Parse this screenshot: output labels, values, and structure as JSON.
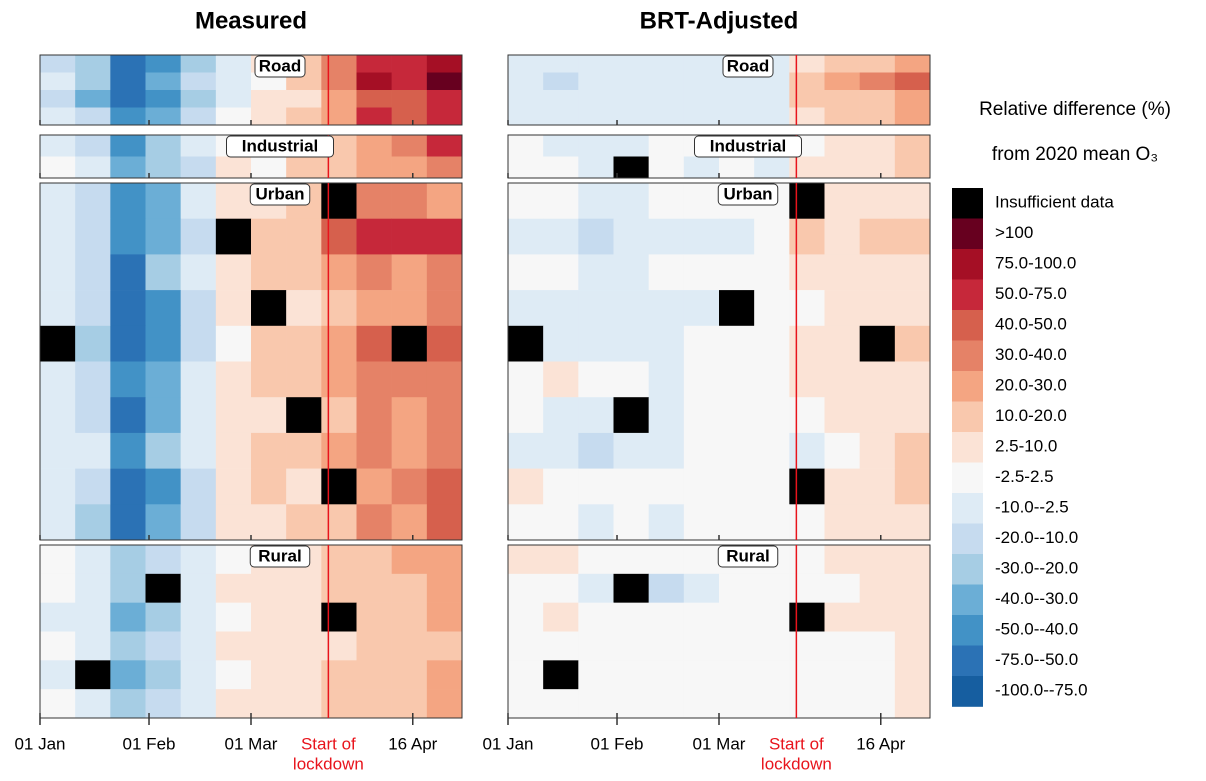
{
  "chart_data": [
    {
      "type": "heatmap",
      "title": "Measured",
      "bins": [
        0,
        10,
        20,
        30,
        40,
        50,
        60,
        70,
        80,
        90,
        100,
        110,
        120
      ],
      "xlim": [
        0,
        120
      ],
      "xticks": [
        {
          "value": 0,
          "label": "01 Jan"
        },
        {
          "value": 31,
          "label": "01 Feb"
        },
        {
          "value": 60,
          "label": "01 Mar"
        },
        {
          "value": 106,
          "label": "16 Apr"
        }
      ],
      "lockdown": {
        "value": 82,
        "label": [
          "Start of",
          "lockdown"
        ],
        "color": "#e8141c"
      },
      "panels": [
        {
          "label": "Road",
          "rows": [
            [
              -15,
              -30,
              -65,
              -50,
              -25,
              -10,
              5,
              10,
              35,
              60,
              55,
              75
            ],
            [
              -10,
              -25,
              -55,
              -40,
              -20,
              -5,
              0,
              15,
              30,
              80,
              50,
              110
            ],
            [
              -20,
              -35,
              -70,
              -45,
              -30,
              -8,
              5,
              5,
              25,
              45,
              40,
              60
            ],
            [
              -5,
              -20,
              -50,
              -35,
              -15,
              0,
              8,
              12,
              20,
              50,
              45,
              55
            ]
          ]
        },
        {
          "label": "Industrial",
          "rows": [
            [
              -5,
              -15,
              -45,
              -30,
              -10,
              -2,
              5,
              8,
              15,
              25,
              30,
              50
            ],
            [
              0,
              -10,
              -40,
              -25,
              -12,
              3,
              2,
              10,
              12,
              20,
              25,
              35
            ]
          ]
        },
        {
          "label": "Urban",
          "rows": [
            [
              -5,
              -15,
              -50,
              -35,
              -10,
              5,
              8,
              12,
              null,
              30,
              35,
              25
            ],
            [
              -8,
              -20,
              -45,
              -40,
              -15,
              null,
              10,
              15,
              45,
              60,
              50,
              55
            ],
            [
              -3,
              -12,
              -55,
              -30,
              -10,
              3,
              12,
              10,
              20,
              30,
              25,
              35
            ],
            [
              -10,
              -18,
              -60,
              -45,
              -12,
              5,
              null,
              8,
              18,
              28,
              22,
              30
            ],
            [
              null,
              -25,
              -65,
              -50,
              -20,
              2,
              10,
              15,
              25,
              45,
              null,
              40
            ],
            [
              -5,
              -15,
              -50,
              -35,
              -8,
              8,
              12,
              10,
              22,
              35,
              30,
              38
            ],
            [
              -7,
              -20,
              -55,
              -38,
              -10,
              4,
              9,
              null,
              15,
              30,
              28,
              35
            ],
            [
              -4,
              -10,
              -45,
              -30,
              -5,
              6,
              14,
              12,
              20,
              32,
              26,
              30
            ],
            [
              -6,
              -15,
              -60,
              -42,
              -12,
              3,
              10,
              8,
              null,
              28,
              30,
              42
            ],
            [
              -8,
              -22,
              -58,
              -40,
              -15,
              5,
              8,
              12,
              18,
              30,
              25,
              45
            ]
          ]
        },
        {
          "label": "Rural",
          "rows": [
            [
              -2,
              -8,
              -30,
              -20,
              -5,
              2,
              5,
              5,
              10,
              15,
              20,
              25
            ],
            [
              0,
              -5,
              -25,
              null,
              -8,
              5,
              3,
              8,
              15,
              12,
              18,
              22
            ],
            [
              -3,
              -10,
              -35,
              -25,
              -10,
              0,
              4,
              6,
              null,
              15,
              12,
              20
            ],
            [
              0,
              -6,
              -28,
              -18,
              -5,
              3,
              6,
              5,
              8,
              12,
              15,
              18
            ],
            [
              -4,
              null,
              -32,
              -22,
              -8,
              2,
              5,
              3,
              10,
              14,
              10,
              20
            ],
            [
              -2,
              -8,
              -30,
              -20,
              -6,
              4,
              5,
              6,
              12,
              15,
              18,
              25
            ]
          ]
        }
      ]
    },
    {
      "type": "heatmap",
      "title": "BRT-Adjusted",
      "bins": [
        0,
        10,
        20,
        30,
        40,
        50,
        60,
        70,
        80,
        90,
        100,
        110,
        120
      ],
      "xlim": [
        0,
        120
      ],
      "xticks": [
        {
          "value": 0,
          "label": "01 Jan"
        },
        {
          "value": 31,
          "label": "01 Feb"
        },
        {
          "value": 60,
          "label": "01 Mar"
        },
        {
          "value": 106,
          "label": "16 Apr"
        }
      ],
      "lockdown": {
        "value": 82,
        "label": [
          "Start of",
          "lockdown"
        ],
        "color": "#e8141c"
      },
      "panels": [
        {
          "label": "Road",
          "rows": [
            [
              -5,
              -5,
              -8,
              -6,
              -5,
              -4,
              -5,
              -5,
              8,
              12,
              15,
              20
            ],
            [
              -8,
              -12,
              -10,
              -10,
              -8,
              -8,
              -6,
              -6,
              15,
              25,
              30,
              45
            ],
            [
              -4,
              -5,
              -6,
              -5,
              -5,
              -4,
              -3,
              -4,
              10,
              15,
              12,
              25
            ],
            [
              -3,
              -6,
              -5,
              -4,
              -3,
              -5,
              -4,
              -5,
              5,
              10,
              12,
              20
            ]
          ]
        },
        {
          "label": "Industrial",
          "rows": [
            [
              -2,
              -3,
              -5,
              -4,
              -2,
              -1,
              -3,
              -3,
              2,
              5,
              8,
              15
            ],
            [
              0,
              -2,
              -3,
              null,
              -2,
              -3,
              -2,
              -4,
              3,
              4,
              5,
              10
            ]
          ]
        },
        {
          "label": "Urban",
          "rows": [
            [
              0,
              -2,
              -4,
              -3,
              -2,
              -1,
              0,
              -1,
              null,
              3,
              5,
              8
            ],
            [
              -3,
              -5,
              -12,
              -10,
              -8,
              -5,
              -6,
              2,
              12,
              8,
              10,
              12
            ],
            [
              1,
              -2,
              -3,
              -4,
              -2,
              0,
              -1,
              -2,
              3,
              4,
              3,
              8
            ],
            [
              -4,
              -6,
              -8,
              -6,
              -5,
              -3,
              null,
              -2,
              2,
              5,
              4,
              6
            ],
            [
              null,
              -3,
              -5,
              -4,
              -3,
              -2,
              -1,
              0,
              3,
              6,
              null,
              10
            ],
            [
              2,
              3,
              0,
              -2,
              -3,
              -1,
              0,
              1,
              4,
              3,
              5,
              8
            ],
            [
              -2,
              -3,
              -4,
              null,
              -3,
              -2,
              -1,
              -1,
              2,
              3,
              4,
              6
            ],
            [
              -3,
              -5,
              -12,
              -8,
              -4,
              -2,
              -1,
              -1,
              -3,
              2,
              3,
              10
            ],
            [
              3,
              2,
              1,
              -2,
              -1,
              0,
              1,
              2,
              null,
              4,
              3,
              12
            ],
            [
              -2,
              -1,
              -3,
              -2,
              -4,
              -1,
              0,
              1,
              2,
              3,
              4,
              8
            ]
          ]
        },
        {
          "label": "Rural",
          "rows": [
            [
              3,
              4,
              2,
              0,
              -1,
              0,
              1,
              1,
              2,
              3,
              4,
              5
            ],
            [
              0,
              -1,
              -3,
              null,
              -15,
              -3,
              -2,
              -1,
              1,
              2,
              3,
              4
            ],
            [
              2,
              3,
              1,
              0,
              -1,
              0,
              1,
              0,
              null,
              3,
              5,
              8
            ],
            [
              0,
              -1,
              0,
              -1,
              0,
              0,
              1,
              0,
              1,
              1,
              2,
              3
            ],
            [
              0,
              null,
              -2,
              -1,
              0,
              1,
              0,
              0,
              1,
              2,
              2,
              6
            ],
            [
              0,
              0,
              -1,
              0,
              0,
              0,
              0,
              1,
              1,
              1,
              2,
              4
            ]
          ]
        }
      ]
    }
  ],
  "legend": {
    "title": [
      "Relative difference (%)",
      "from 2020 mean O₃"
    ],
    "missing": {
      "label": "Insufficient data",
      "color": "#000000"
    },
    "items": [
      {
        "label": ">100",
        "min": 100,
        "color": "#67001f"
      },
      {
        "label": "75.0-100.0",
        "min": 75,
        "color": "#a50f25"
      },
      {
        "label": "50.0-75.0",
        "min": 50,
        "color": "#c6283a"
      },
      {
        "label": "40.0-50.0",
        "min": 40,
        "color": "#d6604d"
      },
      {
        "label": "30.0-40.0",
        "min": 30,
        "color": "#e58267"
      },
      {
        "label": "20.0-30.0",
        "min": 20,
        "color": "#f4a582"
      },
      {
        "label": "10.0-20.0",
        "min": 10,
        "color": "#f9c8ad"
      },
      {
        "label": "2.5-10.0",
        "min": 2.5,
        "color": "#fbe3d6"
      },
      {
        "label": "-2.5-2.5",
        "min": -2.5,
        "color": "#f7f7f7"
      },
      {
        "label": "-10.0--2.5",
        "min": -10,
        "color": "#deebf5"
      },
      {
        "label": "-20.0--10.0",
        "min": -20,
        "color": "#c6dbef"
      },
      {
        "label": "-30.0--20.0",
        "min": -30,
        "color": "#a6cde4"
      },
      {
        "label": "-40.0--30.0",
        "min": -40,
        "color": "#6baed6"
      },
      {
        "label": "-50.0--40.0",
        "min": -50,
        "color": "#4292c6"
      },
      {
        "label": "-75.0--50.0",
        "min": -75,
        "color": "#2b72b5"
      },
      {
        "label": "-100.0--75.0",
        "min": -100,
        "color": "#165ea0"
      }
    ]
  }
}
